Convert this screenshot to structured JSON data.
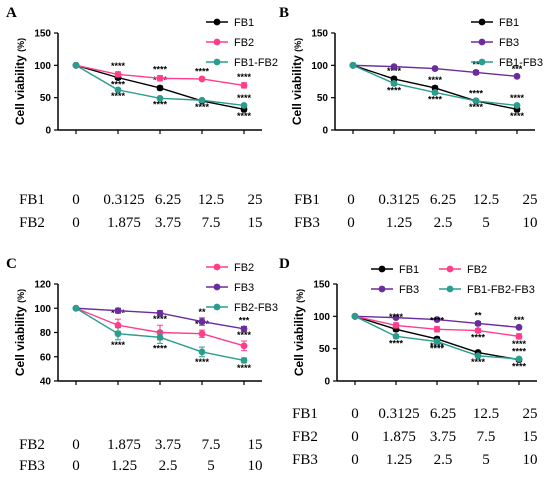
{
  "chart_data": [
    {
      "type": "line",
      "panel_label": "A",
      "ylabel": "Cell viability",
      "ylabel_unit": "(%)",
      "ylim": [
        0,
        150
      ],
      "y_ticks": [
        "0",
        "50",
        "100",
        "150"
      ],
      "dose_rows": [
        {
          "name": "FB1",
          "values": [
            "0",
            "0.3125",
            "6.25",
            "12.5",
            "25"
          ]
        },
        {
          "name": "FB2",
          "values": [
            "0",
            "1.875",
            "3.75",
            "7.5",
            "15"
          ]
        }
      ],
      "series": [
        {
          "name": "FB1",
          "color": "#000000",
          "values": [
            100,
            81,
            65,
            45,
            32
          ],
          "errors": [
            0,
            3,
            3,
            2,
            3
          ],
          "sig": [
            "",
            "****",
            "****",
            "****",
            "****"
          ],
          "sig_pos": [
            "",
            "below",
            "above",
            "below",
            "below"
          ]
        },
        {
          "name": "FB2",
          "color": "#ff3d8b",
          "values": [
            100,
            86,
            80,
            79,
            69
          ],
          "errors": [
            0,
            4,
            4,
            2,
            4
          ],
          "sig": [
            "",
            "****",
            "****",
            "****",
            "****"
          ],
          "sig_pos": [
            "",
            "above",
            "above",
            "above",
            "above"
          ]
        },
        {
          "name": "FB1-FB2",
          "color": "#2a9d8f",
          "values": [
            100,
            62,
            49,
            46,
            38
          ],
          "errors": [
            0,
            2,
            2,
            2,
            2
          ],
          "sig": [
            "",
            "****",
            "****",
            "",
            "****"
          ],
          "sig_pos": [
            "",
            "below",
            "below",
            "",
            "above"
          ]
        }
      ]
    },
    {
      "type": "line",
      "panel_label": "B",
      "ylabel": "Cell viability",
      "ylabel_unit": "(%)",
      "ylim": [
        0,
        150
      ],
      "y_ticks": [
        "0",
        "50",
        "100",
        "150"
      ],
      "dose_rows": [
        {
          "name": "FB1",
          "values": [
            "0",
            "0.3125",
            "6.25",
            "12.5",
            "25"
          ]
        },
        {
          "name": "FB3",
          "values": [
            "0",
            "1.25",
            "2.5",
            "5",
            "10"
          ]
        }
      ],
      "series": [
        {
          "name": "FB1",
          "color": "#000000",
          "values": [
            100,
            79,
            65,
            45,
            32
          ],
          "errors": [
            0,
            3,
            3,
            2,
            3
          ],
          "sig": [
            "",
            "****",
            "****",
            "****",
            "****"
          ],
          "sig_pos": [
            "",
            "above",
            "above",
            "above",
            "below"
          ]
        },
        {
          "name": "FB3",
          "color": "#6a2c9e",
          "values": [
            100,
            98,
            95,
            89,
            83
          ],
          "errors": [
            0,
            2,
            2,
            3,
            2
          ],
          "sig": [
            "",
            "",
            "",
            "**",
            "***"
          ],
          "sig_pos": [
            "",
            "",
            "",
            "above",
            "above"
          ]
        },
        {
          "name": "FB1-FB3",
          "color": "#2a9d8f",
          "values": [
            100,
            72,
            58,
            45,
            38
          ],
          "errors": [
            0,
            3,
            3,
            2,
            2
          ],
          "sig": [
            "",
            "****",
            "****",
            "****",
            "****"
          ],
          "sig_pos": [
            "",
            "below",
            "below",
            "below",
            "above"
          ]
        }
      ]
    },
    {
      "type": "line",
      "panel_label": "C",
      "ylabel": "Cell viability",
      "ylabel_unit": "(%)",
      "ylim": [
        40,
        120
      ],
      "y_ticks": [
        "40",
        "60",
        "80",
        "100",
        "120"
      ],
      "dose_rows": [
        {
          "name": "FB2",
          "values": [
            "0",
            "1.875",
            "3.75",
            "7.5",
            "15"
          ]
        },
        {
          "name": "FB3",
          "values": [
            "0",
            "1.25",
            "2.5",
            "5",
            "10"
          ]
        }
      ],
      "series": [
        {
          "name": "FB2",
          "color": "#ff3d8b",
          "values": [
            100,
            86,
            80,
            79,
            69
          ],
          "errors": [
            0,
            5,
            6,
            3,
            4
          ],
          "sig": [
            "",
            "****",
            "****",
            "****",
            "****"
          ],
          "sig_pos": [
            "",
            "above",
            "above",
            "above",
            "above"
          ]
        },
        {
          "name": "FB3",
          "color": "#6a2c9e",
          "values": [
            100,
            98,
            96,
            89,
            83
          ],
          "errors": [
            0,
            2,
            2,
            3,
            2
          ],
          "sig": [
            "",
            "",
            "",
            "**",
            "***"
          ],
          "sig_pos": [
            "",
            "",
            "",
            "above",
            "above"
          ]
        },
        {
          "name": "FB2-FB3",
          "color": "#2a9d8f",
          "values": [
            100,
            79,
            76,
            64,
            57
          ],
          "errors": [
            0,
            5,
            5,
            4,
            2
          ],
          "sig": [
            "",
            "****",
            "****",
            "****",
            "****"
          ],
          "sig_pos": [
            "",
            "below",
            "below",
            "below",
            "below"
          ]
        }
      ]
    },
    {
      "type": "line",
      "panel_label": "D",
      "ylabel": "Cell viability",
      "ylabel_unit": "(%)",
      "ylim": [
        0,
        150
      ],
      "y_ticks": [
        "0",
        "50",
        "100",
        "150"
      ],
      "dose_rows": [
        {
          "name": "FB1",
          "values": [
            "0",
            "0.3125",
            "6.25",
            "12.5",
            "25"
          ]
        },
        {
          "name": "FB2",
          "values": [
            "0",
            "1.875",
            "3.75",
            "7.5",
            "15"
          ]
        },
        {
          "name": "FB3",
          "values": [
            "0",
            "1.25",
            "2.5",
            "5",
            "10"
          ]
        }
      ],
      "series": [
        {
          "name": "FB1",
          "color": "#000000",
          "values": [
            100,
            80,
            65,
            44,
            33
          ],
          "errors": [
            0,
            3,
            3,
            2,
            3
          ],
          "sig": [
            "",
            "",
            "****",
            "",
            "****"
          ],
          "sig_pos": [
            "",
            "",
            "below",
            "",
            "below"
          ]
        },
        {
          "name": "FB3",
          "color": "#6a2c9e",
          "values": [
            100,
            98,
            95,
            89,
            83
          ],
          "errors": [
            0,
            2,
            2,
            3,
            2
          ],
          "sig": [
            "",
            "",
            "",
            "**",
            "***"
          ],
          "sig_pos": [
            "",
            "",
            "",
            "above",
            "above"
          ]
        },
        {
          "name": "FB2",
          "color": "#ff3d8b",
          "values": [
            100,
            86,
            80,
            78,
            69
          ],
          "errors": [
            0,
            4,
            4,
            3,
            4
          ],
          "sig": [
            "",
            "****",
            "****",
            "****",
            "****"
          ],
          "sig_pos": [
            "",
            "above",
            "above",
            "below",
            "below"
          ]
        },
        {
          "name": "FB1-FB2-FB3",
          "color": "#2a9d8f",
          "values": [
            100,
            69,
            61,
            39,
            34
          ],
          "errors": [
            0,
            3,
            3,
            2,
            2
          ],
          "sig": [
            "",
            "****",
            "****",
            "****",
            "****"
          ],
          "sig_pos": [
            "",
            "below",
            "below",
            "below",
            "above"
          ]
        }
      ]
    }
  ]
}
